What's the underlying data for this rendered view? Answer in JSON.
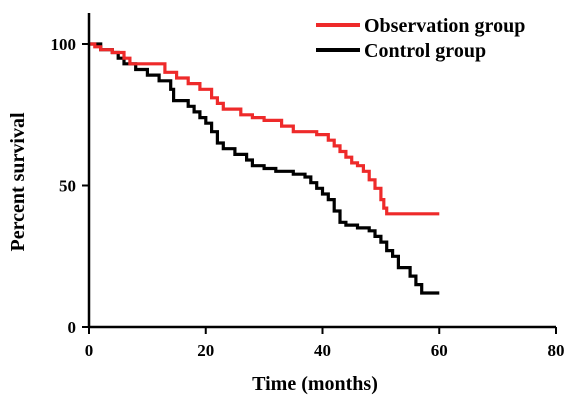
{
  "chart_data": {
    "type": "line",
    "step": true,
    "xlabel": "Time (months)",
    "ylabel": "Percent survival",
    "xlim": [
      0,
      80
    ],
    "ylim": [
      0,
      100
    ],
    "xticks": [
      0,
      20,
      40,
      60,
      80
    ],
    "yticks": [
      0,
      50,
      100
    ],
    "grid": false,
    "legend_position": "top-right",
    "series": [
      {
        "name": "Observation group",
        "color": "#ee2a2a",
        "points": [
          [
            0,
            100
          ],
          [
            1,
            99
          ],
          [
            2,
            98
          ],
          [
            4,
            97
          ],
          [
            6,
            95
          ],
          [
            7,
            93
          ],
          [
            13,
            90
          ],
          [
            15,
            88
          ],
          [
            17,
            86
          ],
          [
            19,
            84
          ],
          [
            21,
            81
          ],
          [
            22,
            79
          ],
          [
            23,
            77
          ],
          [
            26,
            75
          ],
          [
            28,
            74
          ],
          [
            30,
            73
          ],
          [
            33,
            71
          ],
          [
            35,
            69
          ],
          [
            39,
            68
          ],
          [
            41,
            66
          ],
          [
            42,
            64
          ],
          [
            43,
            62
          ],
          [
            44,
            60
          ],
          [
            45,
            58
          ],
          [
            46,
            57
          ],
          [
            47,
            55
          ],
          [
            48,
            52
          ],
          [
            49,
            49
          ],
          [
            50,
            45
          ],
          [
            50.5,
            42
          ],
          [
            51,
            40
          ],
          [
            60,
            40
          ]
        ]
      },
      {
        "name": "Control group",
        "color": "#000000",
        "points": [
          [
            0,
            100
          ],
          [
            2,
            98
          ],
          [
            4,
            97
          ],
          [
            5,
            95
          ],
          [
            6,
            93
          ],
          [
            8,
            91
          ],
          [
            10,
            89
          ],
          [
            12,
            87
          ],
          [
            14,
            84
          ],
          [
            14.5,
            80
          ],
          [
            17,
            78
          ],
          [
            18,
            76
          ],
          [
            19,
            74
          ],
          [
            20,
            72
          ],
          [
            21,
            69
          ],
          [
            22,
            65
          ],
          [
            23,
            63
          ],
          [
            25,
            61
          ],
          [
            27,
            59
          ],
          [
            28,
            57
          ],
          [
            30,
            56
          ],
          [
            32,
            55
          ],
          [
            35,
            54
          ],
          [
            37,
            53
          ],
          [
            38,
            51
          ],
          [
            39,
            49
          ],
          [
            40,
            47
          ],
          [
            41,
            45
          ],
          [
            42,
            41
          ],
          [
            43,
            37
          ],
          [
            44,
            36
          ],
          [
            46,
            35
          ],
          [
            48,
            34
          ],
          [
            49,
            32
          ],
          [
            50,
            30
          ],
          [
            51,
            27
          ],
          [
            52,
            25
          ],
          [
            53,
            21
          ],
          [
            55,
            18
          ],
          [
            56,
            15
          ],
          [
            57,
            12
          ],
          [
            60,
            12
          ]
        ]
      }
    ]
  }
}
